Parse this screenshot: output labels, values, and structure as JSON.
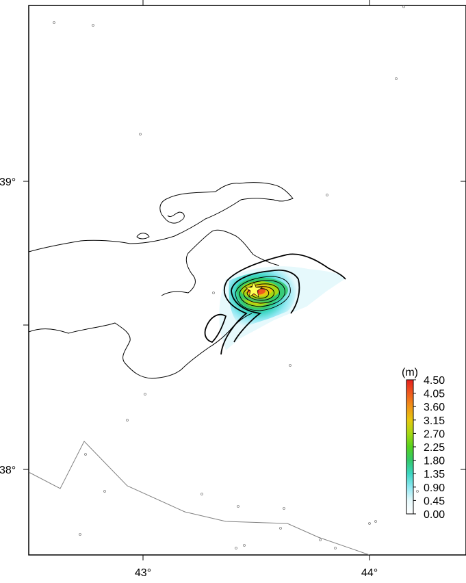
{
  "map": {
    "lon_range": [
      42.5,
      44.4
    ],
    "lat_range": [
      37.7,
      39.6
    ],
    "x_tick_labels": [
      "43°",
      "44°"
    ],
    "y_tick_labels": [
      "39°",
      "38°"
    ],
    "epicenter_marker": "star-icon",
    "station_marker": "small-circle-icon",
    "coastline_color": "#000000",
    "fault_color": "#808080"
  },
  "colorbar": {
    "unit": "(m)",
    "labels": [
      "4.50",
      "4.05",
      "3.60",
      "3.15",
      "2.70",
      "2.25",
      "1.80",
      "1.35",
      "0.90",
      "0.45",
      "0.00"
    ],
    "colors": [
      "#ffffff",
      "#8fe8f2",
      "#3cd6c2",
      "#33c86a",
      "#55d21e",
      "#a6d814",
      "#e6c80f",
      "#f09418",
      "#ef5a1e",
      "#e5201e"
    ]
  }
}
